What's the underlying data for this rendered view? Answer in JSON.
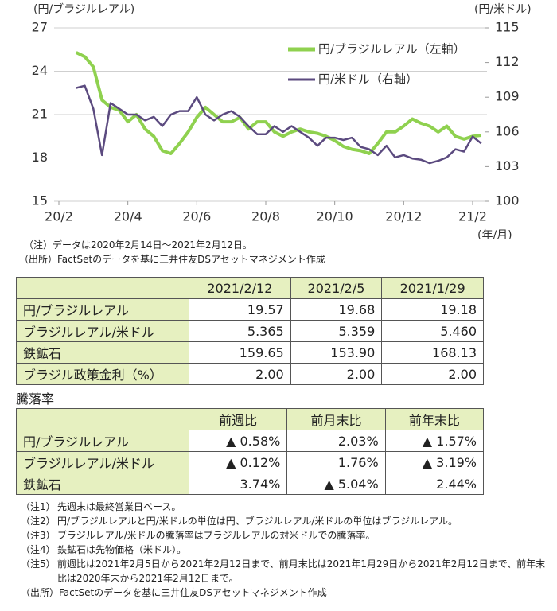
{
  "chart_data": {
    "type": "line",
    "y_axis_title": "(円/ブラジルレアル)",
    "y2_axis_title": "(円/米ドル)",
    "x_axis_title": "(年/月)",
    "x": [
      0.5,
      0.75,
      1,
      1.25,
      1.5,
      1.75,
      2,
      2.25,
      2.5,
      2.75,
      3,
      3.25,
      3.5,
      3.75,
      4,
      4.25,
      4.5,
      4.75,
      5,
      5.25,
      5.5,
      5.75,
      6,
      6.25,
      6.5,
      6.75,
      7,
      7.25,
      7.5,
      7.75,
      8,
      8.25,
      8.5,
      8.75,
      9,
      9.25,
      9.5,
      9.75,
      10,
      10.25,
      10.5,
      10.75,
      11,
      11.25,
      11.5,
      11.75,
      12,
      12.25
    ],
    "series": [
      {
        "name": "円/ブラジルレアル（左軸）",
        "color": "#8fd14f",
        "values": [
          25.3,
          25.0,
          24.3,
          22.0,
          21.5,
          21.3,
          20.5,
          21.0,
          20.0,
          19.5,
          18.5,
          18.3,
          19.0,
          19.8,
          20.8,
          21.5,
          21.0,
          20.5,
          20.5,
          20.8,
          20.0,
          20.5,
          20.5,
          19.8,
          19.5,
          19.8,
          20.0,
          19.8,
          19.7,
          19.5,
          19.2,
          18.8,
          18.6,
          18.5,
          18.3,
          19.0,
          19.8,
          19.8,
          20.2,
          20.7,
          20.4,
          20.2,
          19.8,
          20.2,
          19.5,
          19.3,
          19.5,
          19.57
        ]
      },
      {
        "name": "円/米ドル（右軸）",
        "color": "#5b4a7f",
        "axis": "y2",
        "values": [
          109.8,
          110.0,
          108.0,
          104.0,
          108.5,
          108.0,
          107.5,
          107.5,
          107.0,
          107.3,
          106.5,
          107.5,
          107.8,
          107.8,
          109.0,
          107.5,
          107.0,
          107.5,
          107.8,
          107.3,
          106.5,
          105.8,
          105.8,
          106.5,
          106.0,
          106.5,
          106.0,
          105.5,
          104.8,
          105.5,
          105.5,
          105.3,
          105.5,
          104.7,
          104.5,
          104.0,
          104.8,
          103.8,
          104.0,
          103.7,
          103.6,
          103.3,
          103.5,
          103.8,
          104.5,
          104.3,
          105.6,
          105.0
        ]
      }
    ],
    "xlim": [
      0,
      12.3
    ],
    "xticks": [
      {
        "value": 0,
        "label": "20/2"
      },
      {
        "value": 2,
        "label": "20/4"
      },
      {
        "value": 4,
        "label": "20/6"
      },
      {
        "value": 6,
        "label": "20/8"
      },
      {
        "value": 8,
        "label": "20/10"
      },
      {
        "value": 10,
        "label": "20/12"
      },
      {
        "value": 12,
        "label": "21/2"
      }
    ],
    "ylim": [
      15,
      27
    ],
    "yticks": [
      15,
      18,
      21,
      24,
      27
    ],
    "y2lim": [
      100,
      115
    ],
    "y2ticks": [
      100,
      103,
      106,
      109,
      112,
      115
    ],
    "grid": true
  },
  "chart_notes": [
    "（注）データは2020年2月14日～2021年2月12日。",
    "（出所）FactSetのデータを基に三井住友DSアセットマネジメント作成"
  ],
  "table1": {
    "header": [
      "2021/2/12",
      "2021/2/5",
      "2021/1/29"
    ],
    "rows": [
      [
        "円/ブラジルレアル",
        "19.57",
        "19.68",
        "19.18"
      ],
      [
        "ブラジルレアル/米ドル",
        "5.365",
        "5.359",
        "5.460"
      ],
      [
        "鉄鉱石",
        "159.65",
        "153.90",
        "168.13"
      ],
      [
        "ブラジル政策金利（%）",
        "2.00",
        "2.00",
        "2.00"
      ]
    ]
  },
  "table2_title": "騰落率",
  "table2": {
    "header": [
      "前週比",
      "前月末比",
      "前年末比"
    ],
    "rows": [
      [
        "円/ブラジルレアル",
        "▲ 0.58%",
        "2.03%",
        "▲ 1.57%"
      ],
      [
        "ブラジルレアル/米ドル",
        "▲ 0.12%",
        "1.76%",
        "▲ 3.19%"
      ],
      [
        "鉄鉱石",
        "3.74%",
        "▲ 5.04%",
        "2.44%"
      ]
    ]
  },
  "notes": [
    {
      "label": "（注1）",
      "text": "先週末は最終営業日ベース。"
    },
    {
      "label": "（注2）",
      "text": "円/ブラジルレアルと円/米ドルの単位は円、ブラジルレアル/米ドルの単位はブラジルレアル。"
    },
    {
      "label": "（注3）",
      "text": "ブラジルレアル/米ドルの騰落率はブラジルレアルの対米ドルでの騰落率。"
    },
    {
      "label": "（注4）",
      "text": "鉄鉱石は先物価格（米ドル）。"
    },
    {
      "label": "（注5）",
      "text": "前週比は2021年2月5日から2021年2月12日まで、前月末比は2021年1月29日から2021年2月12日まで、前年末比は2020年末から2021年2月12日まで。"
    }
  ],
  "source": "（出所）FactSetのデータを基に三井住友DSアセットマネジメント作成"
}
